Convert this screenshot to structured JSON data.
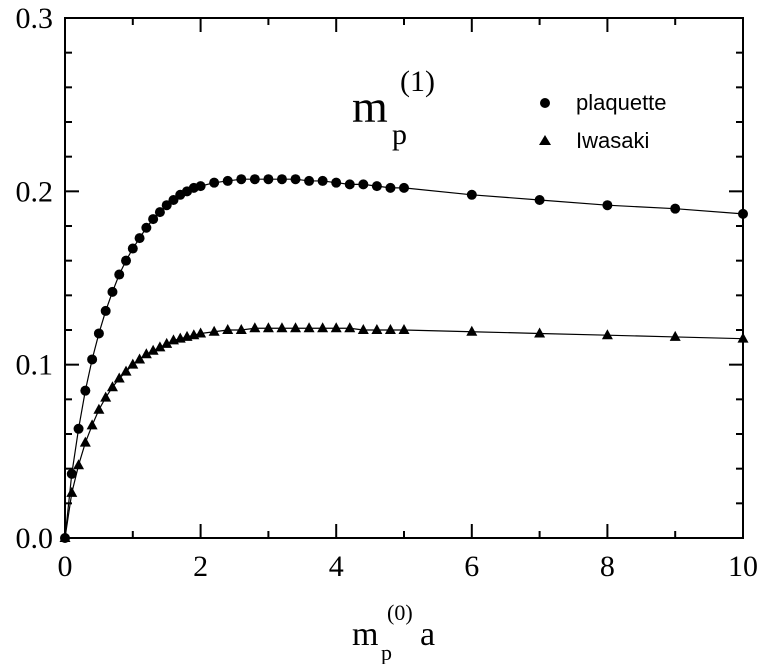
{
  "chart_data": {
    "type": "scatter",
    "xlim": [
      0,
      10
    ],
    "ylim": [
      0,
      0.3
    ],
    "xticks": [
      0,
      2,
      4,
      6,
      8,
      10
    ],
    "xtick_labels": [
      "0",
      "2",
      "4",
      "6",
      "8",
      "10"
    ],
    "yticks": [
      0.0,
      0.1,
      0.2,
      0.3
    ],
    "ytick_labels": [
      "0.0",
      "0.1",
      "0.2",
      "0.3"
    ],
    "xlabel": {
      "base": "m",
      "sub": "p",
      "sup": "(0)",
      "suffix": "a"
    },
    "annotation": {
      "base": "m",
      "sub": "p",
      "sup": "(1)"
    },
    "legend_position": "top-right",
    "grid": false,
    "series": [
      {
        "name": "plaquette",
        "marker": "circle",
        "color": "#000000",
        "line": true,
        "x": [
          0.0,
          0.1,
          0.2,
          0.3,
          0.4,
          0.5,
          0.6,
          0.7,
          0.8,
          0.9,
          1.0,
          1.1,
          1.2,
          1.3,
          1.4,
          1.5,
          1.6,
          1.7,
          1.8,
          1.9,
          2.0,
          2.2,
          2.4,
          2.6,
          2.8,
          3.0,
          3.2,
          3.4,
          3.6,
          3.8,
          4.0,
          4.2,
          4.4,
          4.6,
          4.8,
          5.0,
          6.0,
          7.0,
          8.0,
          9.0,
          10.0
        ],
        "y": [
          0.0,
          0.037,
          0.063,
          0.085,
          0.103,
          0.118,
          0.131,
          0.142,
          0.152,
          0.16,
          0.167,
          0.173,
          0.179,
          0.184,
          0.188,
          0.192,
          0.195,
          0.198,
          0.2,
          0.202,
          0.203,
          0.205,
          0.206,
          0.207,
          0.207,
          0.207,
          0.207,
          0.207,
          0.206,
          0.206,
          0.205,
          0.204,
          0.204,
          0.203,
          0.202,
          0.202,
          0.198,
          0.195,
          0.192,
          0.19,
          0.187
        ]
      },
      {
        "name": "Iwasaki",
        "marker": "triangle",
        "color": "#000000",
        "line": true,
        "x": [
          0.0,
          0.1,
          0.2,
          0.3,
          0.4,
          0.5,
          0.6,
          0.7,
          0.8,
          0.9,
          1.0,
          1.1,
          1.2,
          1.3,
          1.4,
          1.5,
          1.6,
          1.7,
          1.8,
          1.9,
          2.0,
          2.2,
          2.4,
          2.6,
          2.8,
          3.0,
          3.2,
          3.4,
          3.6,
          3.8,
          4.0,
          4.2,
          4.4,
          4.6,
          4.8,
          5.0,
          6.0,
          7.0,
          8.0,
          9.0,
          10.0
        ],
        "y": [
          0.0,
          0.026,
          0.042,
          0.055,
          0.065,
          0.074,
          0.081,
          0.087,
          0.092,
          0.096,
          0.1,
          0.103,
          0.106,
          0.108,
          0.11,
          0.112,
          0.114,
          0.115,
          0.116,
          0.117,
          0.118,
          0.119,
          0.12,
          0.12,
          0.121,
          0.121,
          0.121,
          0.121,
          0.121,
          0.121,
          0.121,
          0.121,
          0.12,
          0.12,
          0.12,
          0.12,
          0.119,
          0.118,
          0.117,
          0.116,
          0.115
        ]
      }
    ]
  }
}
